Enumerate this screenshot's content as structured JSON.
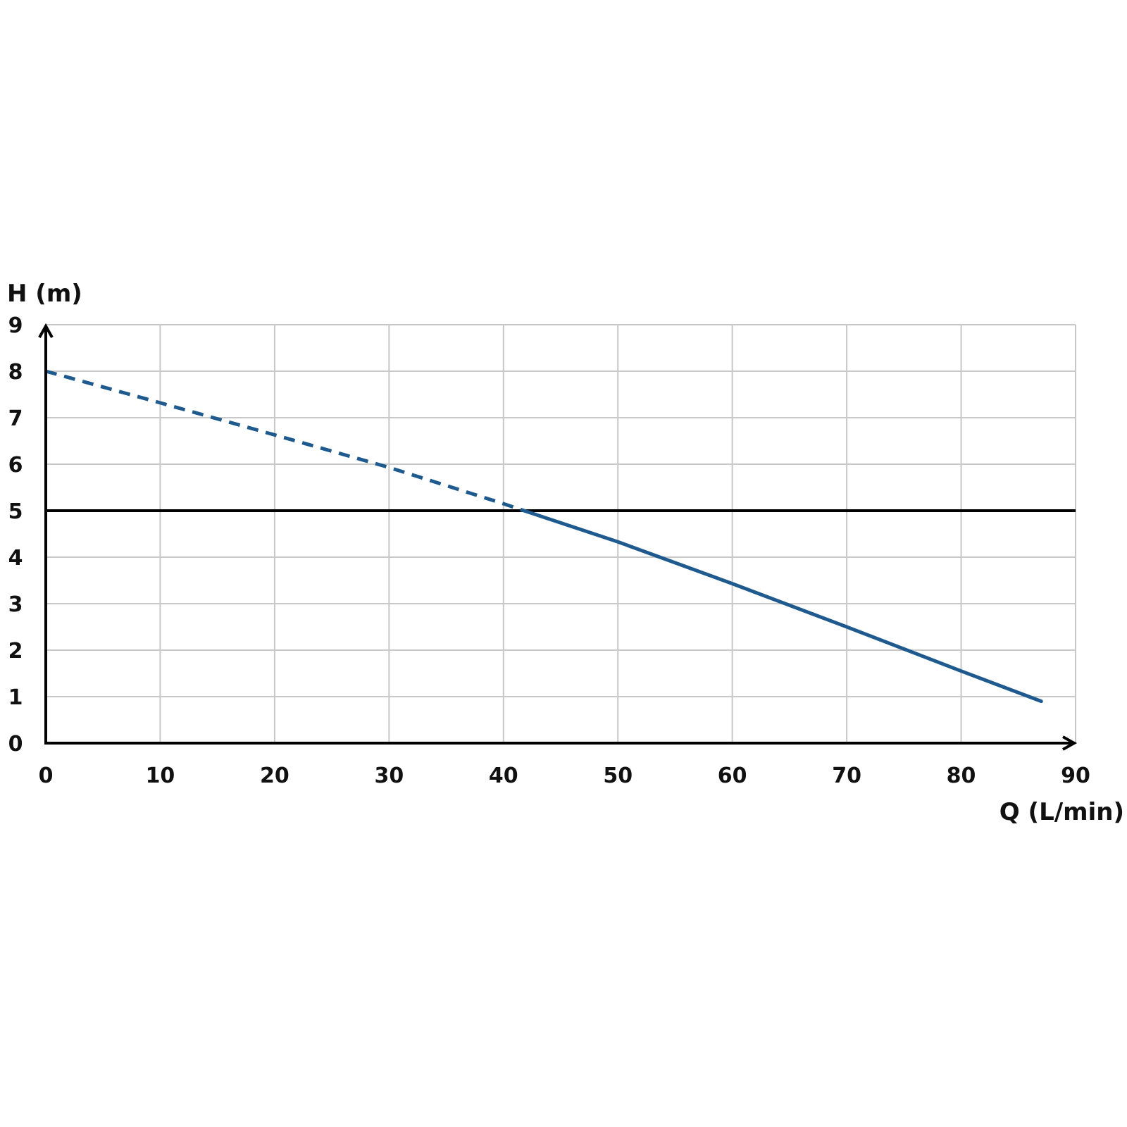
{
  "chart_data": {
    "type": "line",
    "title": "",
    "xlabel": "Q (L/min)",
    "ylabel": "H (m)",
    "xlim": [
      0,
      90
    ],
    "ylim": [
      0,
      9
    ],
    "xticks": [
      0,
      10,
      20,
      30,
      40,
      50,
      60,
      70,
      80,
      90
    ],
    "yticks": [
      0,
      1,
      2,
      3,
      4,
      5,
      6,
      7,
      8,
      9
    ],
    "grid": true,
    "legend": "none",
    "series": [
      {
        "style": "dashed",
        "color": "#1f5a8f",
        "x": [
          0,
          10,
          20,
          30,
          40,
          41.8
        ],
        "y": [
          8.0,
          7.32,
          6.63,
          5.93,
          5.15,
          5.0
        ]
      },
      {
        "style": "solid",
        "color": "#1f5a8f",
        "x": [
          41.8,
          50,
          60,
          70,
          80,
          87
        ],
        "y": [
          5.0,
          4.33,
          3.43,
          2.5,
          1.55,
          0.9
        ]
      }
    ],
    "reference_lines": [
      {
        "axis": "y",
        "value": 5,
        "color": "#000000"
      }
    ],
    "grid_color": "#c8c8c8"
  }
}
